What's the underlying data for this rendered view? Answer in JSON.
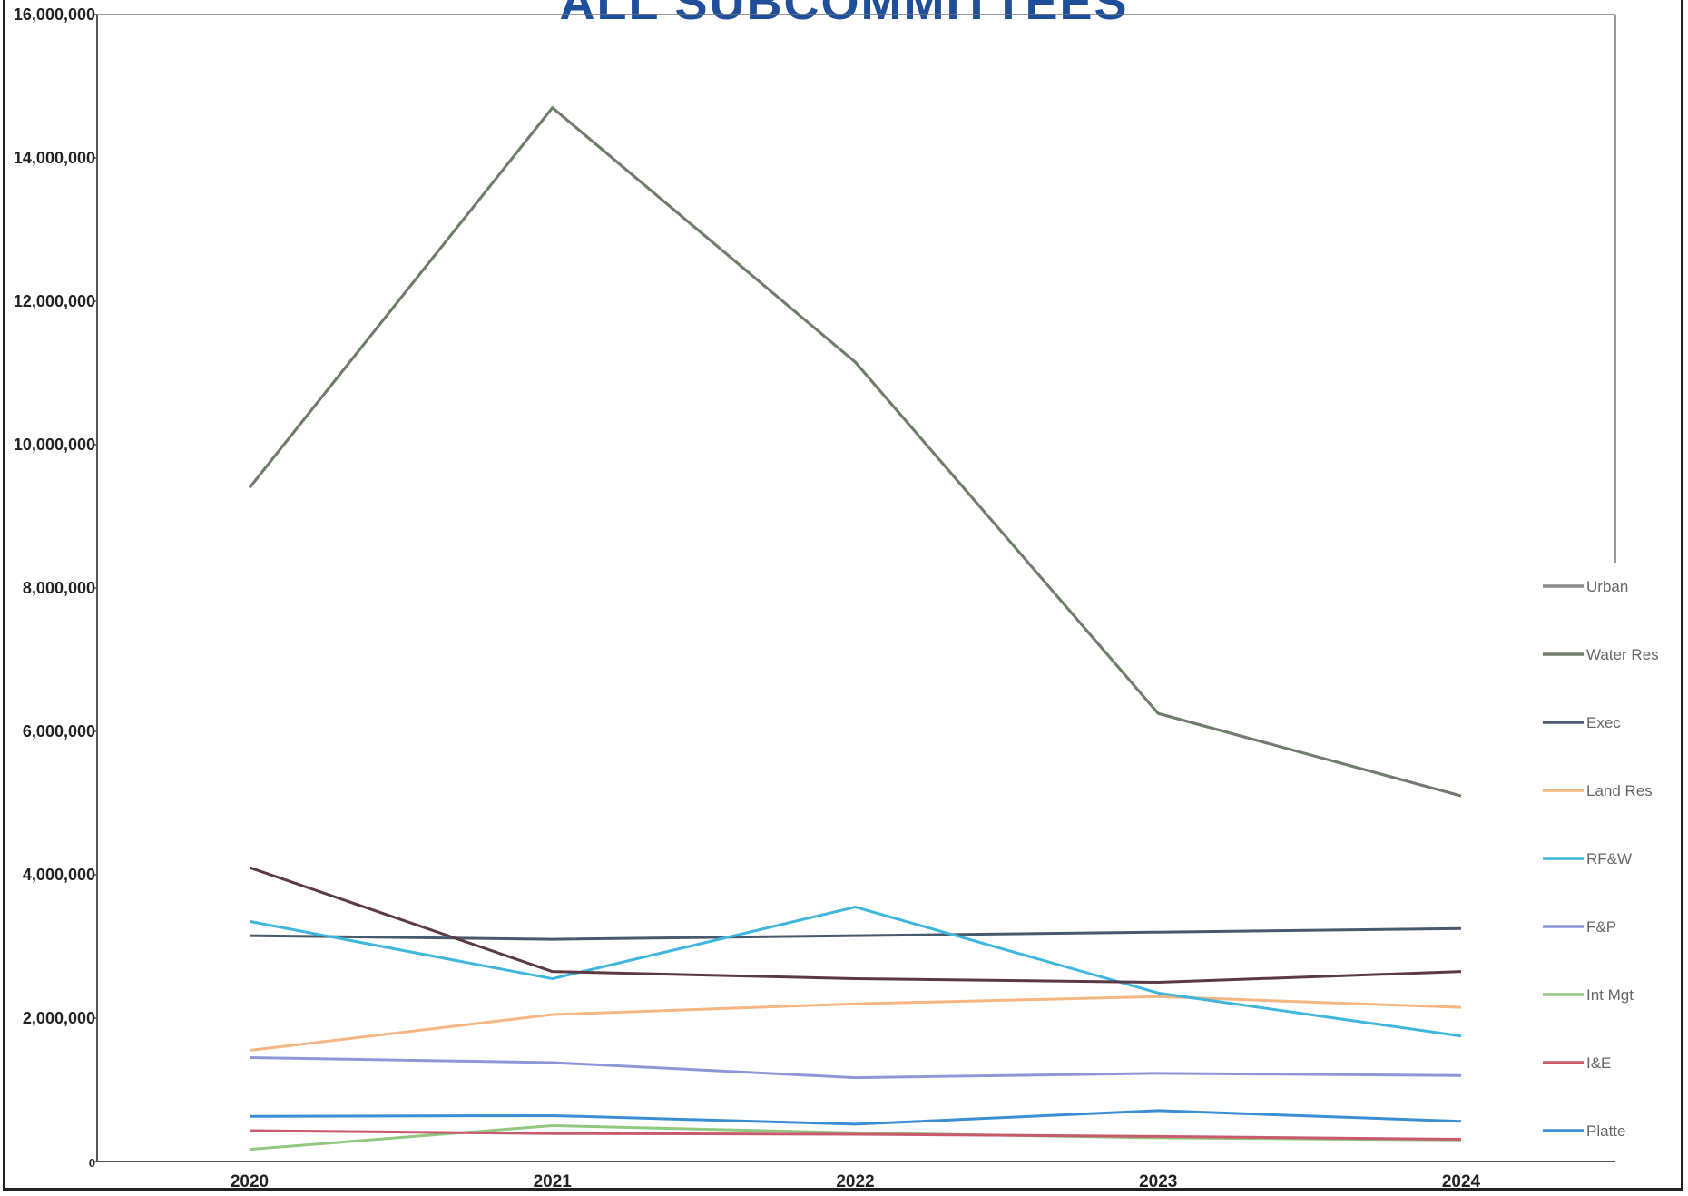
{
  "chart_data": {
    "type": "line",
    "title": "ALL SUBCOMMITTEES",
    "xlabel": "",
    "ylabel": "",
    "categories": [
      "2020",
      "2021",
      "2022",
      "2023",
      "2024"
    ],
    "ylim": [
      0,
      16000000
    ],
    "yticks": [
      0,
      2000000,
      4000000,
      6000000,
      8000000,
      10000000,
      12000000,
      14000000,
      16000000
    ],
    "ytick_labels": [
      "0",
      "2,000,000",
      "4,000,000",
      "6,000,000",
      "8,000,000",
      "10,000,000",
      "12,000,000",
      "14,000,000",
      "16,000,000"
    ],
    "grid": false,
    "legend_position": "right",
    "series": [
      {
        "name": "Urban",
        "color": "#8a8a8a",
        "values": [
          9400000,
          14700000,
          11150000,
          6250000,
          5100000
        ]
      },
      {
        "name": "Water Res",
        "color": "#6e7e6a",
        "values": [
          9400000,
          14700000,
          11150000,
          6250000,
          5100000
        ]
      },
      {
        "name": "Exec",
        "color": "#4a5a6e",
        "values": [
          3150000,
          3100000,
          3150000,
          3200000,
          3250000
        ]
      },
      {
        "name": "Land Res",
        "color": "#f5b682",
        "values": [
          1550000,
          2050000,
          2200000,
          2300000,
          2150000
        ]
      },
      {
        "name": "RF&W",
        "color": "#3fb6dc",
        "values": [
          3350000,
          2550000,
          3550000,
          2350000,
          1750000
        ]
      },
      {
        "name": "F&P",
        "color": "#8e96d8",
        "values": [
          1450000,
          1380000,
          1170000,
          1230000,
          1200000
        ]
      },
      {
        "name": "Int Mgt",
        "color": "#92c87e",
        "values": [
          170000,
          500000,
          400000,
          330000,
          300000
        ]
      },
      {
        "name": "I&E",
        "color": "#c85a6e",
        "values": [
          430000,
          390000,
          380000,
          350000,
          310000
        ]
      },
      {
        "name": "Platte",
        "color": "#3a8fd4",
        "values": [
          630000,
          640000,
          520000,
          710000,
          560000
        ]
      },
      {
        "name": "",
        "color": "#5a3a44",
        "values": [
          4100000,
          2650000,
          2550000,
          2500000,
          2650000
        ]
      }
    ]
  }
}
